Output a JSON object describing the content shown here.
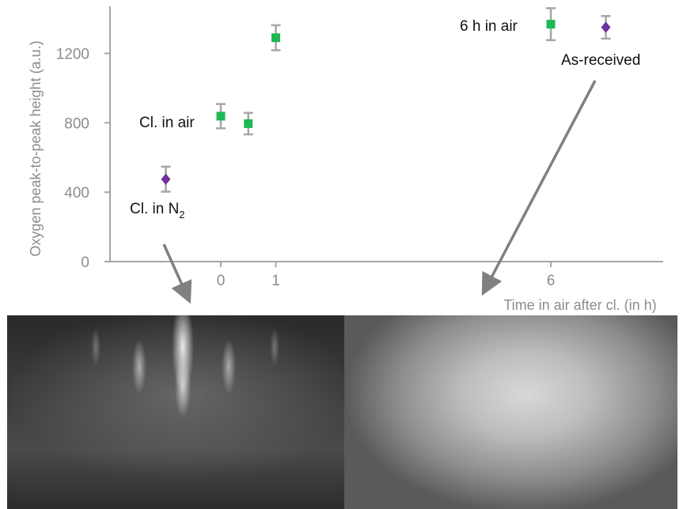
{
  "chart_data": {
    "type": "scatter",
    "title": "",
    "ylabel": "Oxygen peak-to-peak height (a.u.)",
    "xlabel": "Time in air after cl. (in h)",
    "xlim": [
      -2,
      8
    ],
    "ylim": [
      0,
      1480
    ],
    "x_ticks": [
      0,
      1,
      6
    ],
    "x_tick_labels": [
      "0",
      "1",
      "6"
    ],
    "y_ticks": [
      0,
      400,
      800,
      1200
    ],
    "y_tick_labels": [
      "0",
      "400",
      "800",
      "1200"
    ],
    "grid": false,
    "series": [
      {
        "marker": "square",
        "color": "#1db954",
        "points": [
          {
            "x": 0,
            "y": 838,
            "err": 70
          },
          {
            "x": 0.5,
            "y": 795,
            "err": 62
          },
          {
            "x": 1,
            "y": 1290,
            "err": 72
          },
          {
            "x": 6,
            "y": 1368,
            "err": 92
          }
        ]
      },
      {
        "marker": "diamond",
        "color": "#7030a0",
        "points": [
          {
            "x": -1,
            "y": 475,
            "err": 72
          },
          {
            "x": 7,
            "y": 1350,
            "err": 65
          }
        ]
      }
    ],
    "annotations": [
      {
        "text": "Cl. in air"
      },
      {
        "text": "6 h in air"
      },
      {
        "text": "As-received"
      },
      {
        "text": "Cl. in N",
        "subscript": "2"
      }
    ],
    "error_bar_color": "#a6a6a6",
    "axis_color": "#a6a6a6",
    "arrow_color": "#808080"
  },
  "images": {
    "left": "RHEED pattern with streaks",
    "right": "diffuse RHEED pattern"
  }
}
